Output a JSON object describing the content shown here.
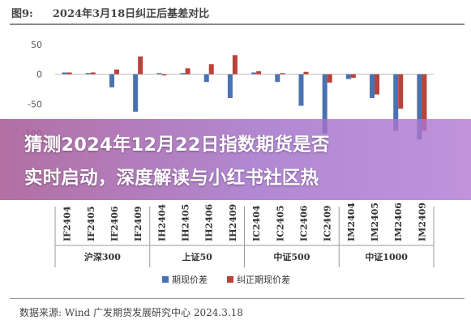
{
  "figure": {
    "label": "图9:",
    "title": "2024年3月18日纠正后基差对比",
    "source": "数据来源: Wind  广发期货发展研究中心  2024.3.18"
  },
  "colors": {
    "series1": "#4a72b0",
    "series2": "#b8433b"
  },
  "overlay": {
    "line1": "猜测2024年12月22日指数期货是否",
    "line2": "实时启动，深度解读与小红书社区热"
  },
  "chart_data": {
    "type": "bar",
    "title": "2024年3月18日纠正后基差对比",
    "ylim": [
      -100,
      50
    ],
    "yticks": [
      50,
      0,
      -50,
      -100
    ],
    "categories": [
      "IF2404",
      "IF2405",
      "IF2406",
      "IF2409",
      "IH2404",
      "IH2405",
      "IH2406",
      "IH2409",
      "IC2404",
      "IC2405",
      "IC2406",
      "IC2409",
      "IM2404",
      "IM2405",
      "IM2406",
      "IM2409"
    ],
    "groups": [
      "沪深300",
      "上证50",
      "中证500",
      "中证1000"
    ],
    "series": [
      {
        "name": "期现价差",
        "values": [
          3,
          2,
          -22,
          -63,
          2,
          2,
          -13,
          -40,
          3,
          -13,
          -53,
          -100,
          -8,
          -40,
          -95,
          -110
        ]
      },
      {
        "name": "纠正期现价差",
        "values": [
          3,
          3,
          8,
          30,
          -2,
          10,
          17,
          32,
          5,
          2,
          4,
          -14,
          -6,
          -34,
          -58,
          -95
        ]
      }
    ],
    "legend_position": "bottom-center",
    "grid": false
  }
}
